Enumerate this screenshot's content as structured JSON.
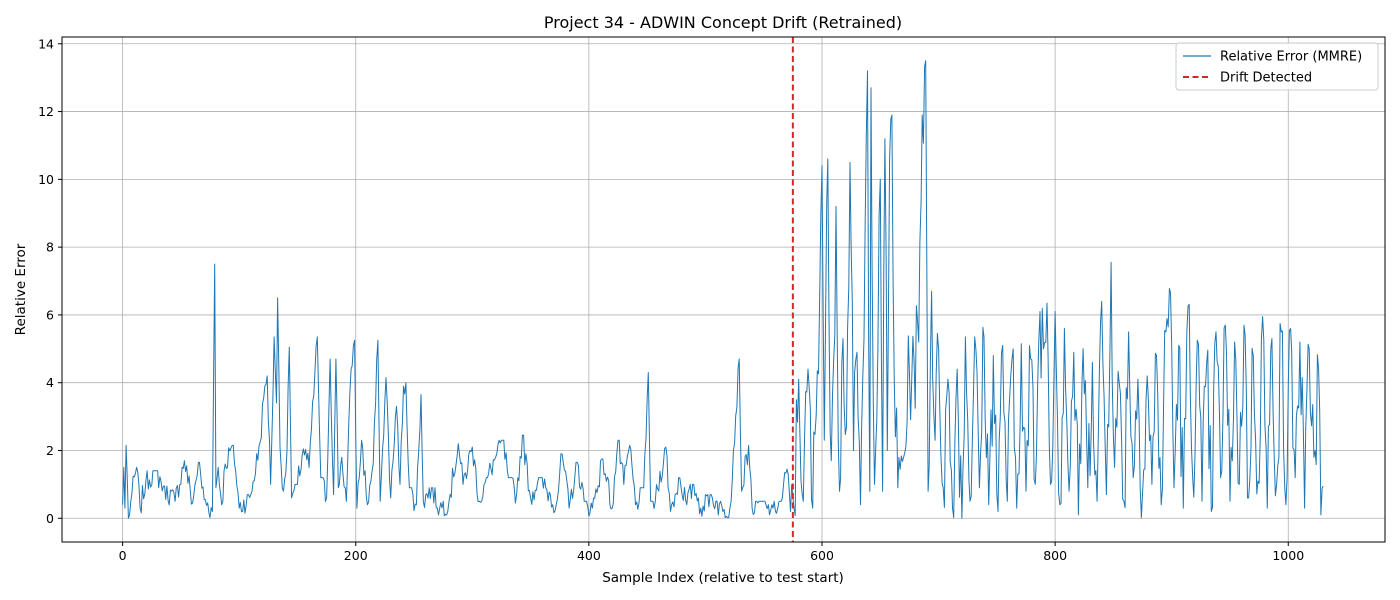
{
  "chart_data": {
    "type": "line",
    "title": "Project 34 - ADWIN Concept Drift (Retrained)",
    "xlabel": "Sample Index (relative to test start)",
    "ylabel": "Relative Error",
    "xlim": [
      -52,
      1083
    ],
    "ylim": [
      -0.7,
      14.2
    ],
    "xticks": [
      0,
      200,
      400,
      600,
      800,
      1000
    ],
    "yticks": [
      0,
      2,
      4,
      6,
      8,
      10,
      12,
      14
    ],
    "grid": true,
    "legend_position": "top-right",
    "series": [
      {
        "name": "Relative Error (MMRE)",
        "color": "#1f77b4",
        "style": "solid",
        "sample_every": 1,
        "key_points": [
          [
            0,
            0.4
          ],
          [
            1,
            1.5
          ],
          [
            2,
            0.3
          ],
          [
            3,
            2.15
          ],
          [
            5,
            0.0
          ],
          [
            7,
            0.5
          ],
          [
            12,
            1.5
          ],
          [
            15,
            0.3
          ],
          [
            20,
            1.1
          ],
          [
            28,
            1.4
          ],
          [
            35,
            0.95
          ],
          [
            45,
            0.5
          ],
          [
            53,
            1.7
          ],
          [
            60,
            0.45
          ],
          [
            65,
            1.65
          ],
          [
            70,
            0.55
          ],
          [
            77,
            0.2
          ],
          [
            79,
            7.5
          ],
          [
            80,
            0.9
          ],
          [
            82,
            1.5
          ],
          [
            85,
            0.4
          ],
          [
            88,
            1.6
          ],
          [
            95,
            2.15
          ],
          [
            100,
            0.3
          ],
          [
            110,
            0.7
          ],
          [
            118,
            2.25
          ],
          [
            121,
            3.55
          ],
          [
            124,
            4.2
          ],
          [
            127,
            1.0
          ],
          [
            130,
            5.35
          ],
          [
            132,
            3.4
          ],
          [
            133,
            6.5
          ],
          [
            135,
            2.1
          ],
          [
            138,
            0.8
          ],
          [
            141,
            2.0
          ],
          [
            143,
            5.05
          ],
          [
            145,
            0.6
          ],
          [
            150,
            1.0
          ],
          [
            155,
            2.05
          ],
          [
            160,
            1.5
          ],
          [
            167,
            5.35
          ],
          [
            170,
            1.2
          ],
          [
            175,
            0.6
          ],
          [
            178,
            4.7
          ],
          [
            181,
            0.7
          ],
          [
            183,
            4.7
          ],
          [
            185,
            0.9
          ],
          [
            188,
            1.8
          ],
          [
            192,
            0.5
          ],
          [
            196,
            4.4
          ],
          [
            199,
            5.25
          ],
          [
            201,
            0.3
          ],
          [
            205,
            2.3
          ],
          [
            210,
            0.4
          ],
          [
            215,
            1.6
          ],
          [
            219,
            5.25
          ],
          [
            221,
            0.5
          ],
          [
            226,
            4.15
          ],
          [
            230,
            0.6
          ],
          [
            235,
            3.3
          ],
          [
            238,
            1.0
          ],
          [
            241,
            3.9
          ],
          [
            243,
            4.0
          ],
          [
            246,
            0.9
          ],
          [
            252,
            0.4
          ],
          [
            256,
            3.65
          ],
          [
            258,
            0.5
          ],
          [
            265,
            0.9
          ],
          [
            272,
            0.3
          ],
          [
            280,
            0.5
          ],
          [
            288,
            2.2
          ],
          [
            292,
            1.0
          ],
          [
            300,
            2.1
          ],
          [
            306,
            0.5
          ],
          [
            313,
            1.2
          ],
          [
            320,
            1.8
          ],
          [
            326,
            2.3
          ],
          [
            331,
            1.2
          ],
          [
            338,
            0.7
          ],
          [
            343,
            2.45
          ],
          [
            350,
            0.6
          ],
          [
            357,
            1.2
          ],
          [
            372,
            0.4
          ],
          [
            377,
            1.9
          ],
          [
            383,
            0.3
          ],
          [
            390,
            1.65
          ],
          [
            396,
            0.5
          ],
          [
            403,
            0.3
          ],
          [
            412,
            1.75
          ],
          [
            420,
            0.3
          ],
          [
            425,
            2.3
          ],
          [
            430,
            1.0
          ],
          [
            435,
            2.15
          ],
          [
            440,
            0.4
          ],
          [
            447,
            0.9
          ],
          [
            451,
            4.3
          ],
          [
            453,
            0.5
          ],
          [
            457,
            0.5
          ],
          [
            466,
            2.1
          ],
          [
            470,
            0.2
          ],
          [
            478,
            1.2
          ],
          [
            484,
            0.4
          ],
          [
            490,
            1.0
          ],
          [
            496,
            0.3
          ],
          [
            504,
            0.7
          ],
          [
            509,
            0.5
          ],
          [
            515,
            0.2
          ],
          [
            521,
            0.3
          ],
          [
            529,
            4.7
          ],
          [
            531,
            0.8
          ],
          [
            537,
            2.15
          ],
          [
            540,
            0.3
          ],
          [
            546,
            0.5
          ],
          [
            552,
            0.4
          ],
          [
            558,
            0.3
          ],
          [
            565,
            0.5
          ],
          [
            570,
            1.45
          ],
          [
            573,
            0.2
          ],
          [
            574,
            1.0
          ],
          [
            576,
            0.3
          ],
          [
            580,
            4.1
          ],
          [
            584,
            0.5
          ],
          [
            588,
            4.4
          ],
          [
            592,
            0.3
          ],
          [
            596,
            4.35
          ],
          [
            600,
            10.4
          ],
          [
            602,
            2.3
          ],
          [
            605,
            10.6
          ],
          [
            607,
            2.5
          ],
          [
            610,
            4.7
          ],
          [
            612,
            9.2
          ],
          [
            615,
            0.8
          ],
          [
            618,
            5.3
          ],
          [
            621,
            2.7
          ],
          [
            624,
            10.5
          ],
          [
            627,
            2.0
          ],
          [
            630,
            4.9
          ],
          [
            633,
            0.4
          ],
          [
            636,
            5.3
          ],
          [
            639,
            13.2
          ],
          [
            641,
            0.8
          ],
          [
            642,
            12.7
          ],
          [
            645,
            1.0
          ],
          [
            648,
            5.0
          ],
          [
            650,
            10.0
          ],
          [
            652,
            0.8
          ],
          [
            654,
            11.2
          ],
          [
            656,
            2.0
          ],
          [
            658,
            10.6
          ],
          [
            660,
            11.9
          ],
          [
            662,
            4.0
          ],
          [
            665,
            0.9
          ],
          [
            670,
            1.8
          ],
          [
            675,
            4.3
          ],
          [
            679,
            4.6
          ],
          [
            683,
            5.2
          ],
          [
            686,
            11.9
          ],
          [
            689,
            13.5
          ],
          [
            691,
            0.8
          ],
          [
            694,
            6.7
          ],
          [
            697,
            2.3
          ],
          [
            700,
            5.0
          ],
          [
            704,
            0.9
          ],
          [
            708,
            4.1
          ],
          [
            712,
            0.3
          ],
          [
            716,
            4.4
          ],
          [
            720,
            0.0
          ],
          [
            723,
            5.35
          ],
          [
            727,
            0.5
          ],
          [
            731,
            5.35
          ],
          [
            735,
            0.9
          ],
          [
            739,
            5.35
          ],
          [
            743,
            0.4
          ],
          [
            747,
            4.8
          ],
          [
            751,
            0.2
          ],
          [
            755,
            5.1
          ],
          [
            759,
            0.5
          ],
          [
            763,
            4.7
          ],
          [
            767,
            0.3
          ],
          [
            771,
            5.15
          ],
          [
            775,
            0.8
          ],
          [
            779,
            4.7
          ],
          [
            783,
            1.0
          ],
          [
            787,
            6.1
          ],
          [
            790,
            5.0
          ],
          [
            793,
            6.35
          ],
          [
            796,
            1.0
          ],
          [
            800,
            6.1
          ],
          [
            804,
            0.4
          ],
          [
            808,
            5.6
          ],
          [
            812,
            0.8
          ],
          [
            816,
            4.9
          ],
          [
            820,
            0.1
          ],
          [
            824,
            5.0
          ],
          [
            828,
            0.9
          ],
          [
            832,
            4.6
          ],
          [
            836,
            0.5
          ],
          [
            840,
            6.4
          ],
          [
            844,
            0.7
          ],
          [
            848,
            7.55
          ],
          [
            851,
            1.5
          ],
          [
            855,
            4.0
          ],
          [
            859,
            0.5
          ],
          [
            863,
            5.5
          ],
          [
            867,
            1.2
          ],
          [
            871,
            4.1
          ],
          [
            875,
            0.7
          ],
          [
            879,
            4.2
          ],
          [
            883,
            1.0
          ],
          [
            887,
            4.8
          ],
          [
            891,
            0.4
          ],
          [
            895,
            5.5
          ],
          [
            899,
            6.65
          ],
          [
            902,
            0.9
          ],
          [
            906,
            5.1
          ],
          [
            910,
            0.3
          ],
          [
            914,
            6.25
          ],
          [
            918,
            1.2
          ],
          [
            922,
            5.25
          ],
          [
            926,
            0.5
          ],
          [
            930,
            4.6
          ],
          [
            934,
            0.2
          ],
          [
            938,
            5.5
          ],
          [
            942,
            1.2
          ],
          [
            946,
            5.7
          ],
          [
            950,
            0.5
          ],
          [
            954,
            5.2
          ],
          [
            958,
            1.0
          ],
          [
            962,
            5.7
          ],
          [
            966,
            0.6
          ],
          [
            970,
            4.8
          ],
          [
            974,
            1.1
          ],
          [
            978,
            5.95
          ],
          [
            982,
            0.3
          ],
          [
            986,
            5.3
          ],
          [
            990,
            1.0
          ],
          [
            994,
            5.5
          ],
          [
            998,
            0.4
          ],
          [
            1002,
            5.6
          ],
          [
            1006,
            1.2
          ],
          [
            1010,
            5.2
          ],
          [
            1014,
            0.3
          ],
          [
            1018,
            5.0
          ],
          [
            1022,
            1.8
          ],
          [
            1026,
            4.4
          ],
          [
            1028,
            0.1
          ],
          [
            1030,
            0.95
          ]
        ]
      },
      {
        "name": "Drift Detected",
        "color": "#d62728",
        "style": "dashed",
        "vertical_line_at_x": 575
      }
    ]
  }
}
